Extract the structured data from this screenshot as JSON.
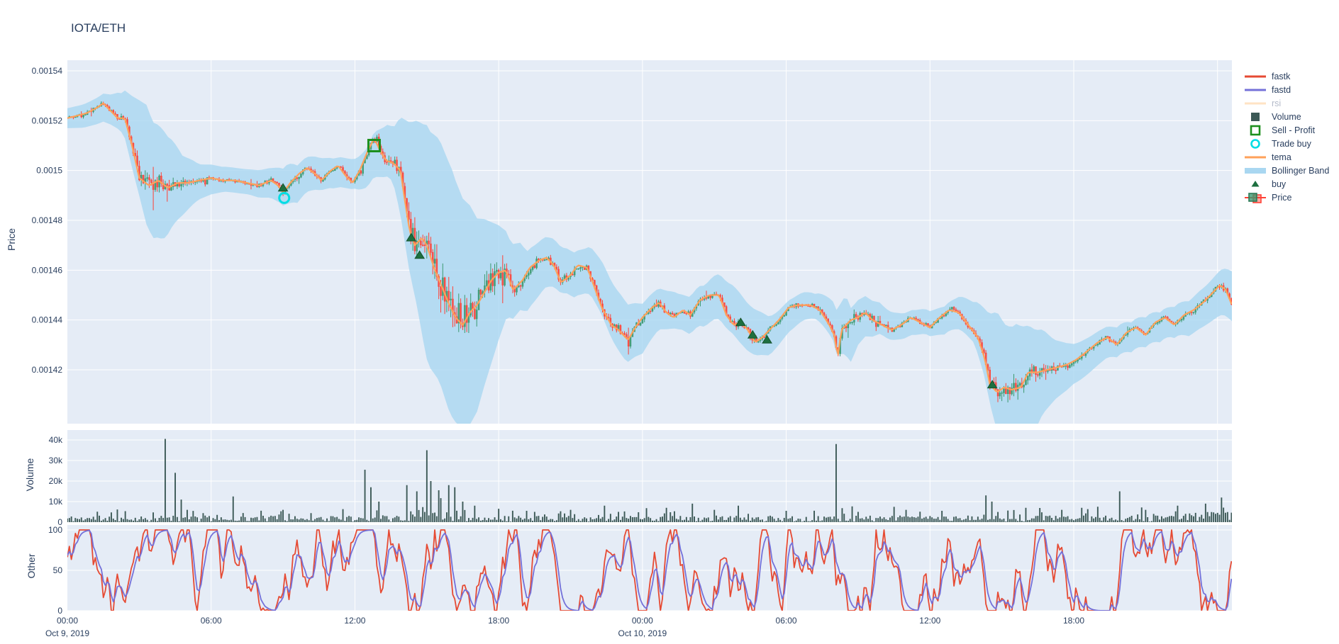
{
  "title": "IOTA/ETH",
  "colors": {
    "paper": "#ffffff",
    "plot_background": "#e5ecf6",
    "grid": "#ffffff",
    "text": "#2a3f5f",
    "candle_up": "#3d9970",
    "candle_up_fill": "rgba(61,153,112,0.55)",
    "candle_down": "#ff4136",
    "candle_down_fill": "rgba(255,65,54,0.5)",
    "tema": "#ffa15a",
    "bollinger_band": "#a9d7f1",
    "volume_bar": "#3c5956",
    "fastk": "#e64a33",
    "fastd": "#7471d9",
    "buy_marker": "#1d6f3f",
    "sell_profit_marker": "#1d8f1d",
    "trade_buy_marker": "#00dde4",
    "rsi_disabled_swatch": "#ffe3c4",
    "disabled_legend_text": "#b3bac9"
  },
  "axes": {
    "price": {
      "title": "Price",
      "tick_labels": [
        "0.00154",
        "0.00152",
        "0.0015",
        "0.00148",
        "0.00146",
        "0.00144",
        "0.00142"
      ],
      "tick_values": [
        0.00154,
        0.00152,
        0.0015,
        0.00148,
        0.00146,
        0.00144,
        0.00142
      ]
    },
    "volume": {
      "title": "Volume",
      "tick_labels": [
        "40k",
        "30k",
        "20k",
        "10k",
        "0"
      ],
      "tick_values": [
        40000,
        30000,
        20000,
        10000,
        0
      ]
    },
    "other": {
      "title": "Other",
      "tick_labels": [
        "100",
        "50",
        "0"
      ],
      "tick_values": [
        100,
        50,
        0
      ]
    },
    "x": {
      "ticks": [
        {
          "h": 0,
          "label": "00:00",
          "date": "Oct 9, 2019"
        },
        {
          "h": 6,
          "label": "06:00",
          "date": ""
        },
        {
          "h": 12,
          "label": "12:00",
          "date": ""
        },
        {
          "h": 18,
          "label": "18:00",
          "date": ""
        },
        {
          "h": 24,
          "label": "00:00",
          "date": "Oct 10, 2019"
        },
        {
          "h": 30,
          "label": "06:00",
          "date": ""
        },
        {
          "h": 36,
          "label": "12:00",
          "date": ""
        },
        {
          "h": 42,
          "label": "18:00",
          "date": ""
        }
      ],
      "gridlines_h": [
        6,
        12,
        18,
        24,
        30,
        36,
        42,
        48
      ]
    }
  },
  "legend": [
    {
      "id": "fastk",
      "label": "fastk",
      "swatch": "line",
      "color_key": "fastk",
      "disabled": false
    },
    {
      "id": "fastd",
      "label": "fastd",
      "swatch": "line",
      "color_key": "fastd",
      "disabled": false
    },
    {
      "id": "rsi",
      "label": "rsi",
      "swatch": "line",
      "color_key": "rsi_disabled_swatch",
      "disabled": true
    },
    {
      "id": "volume",
      "label": "Volume",
      "swatch": "square",
      "color_key": "volume_bar",
      "disabled": false
    },
    {
      "id": "sell-profit",
      "label": "Sell - Profit",
      "swatch": "square-open",
      "color_key": "sell_profit_marker",
      "disabled": false
    },
    {
      "id": "trade-buy",
      "label": "Trade buy",
      "swatch": "circle-open",
      "color_key": "trade_buy_marker",
      "disabled": false
    },
    {
      "id": "tema",
      "label": "tema",
      "swatch": "line",
      "color_key": "tema",
      "disabled": false
    },
    {
      "id": "bollinger-band",
      "label": "Bollinger Band",
      "swatch": "band",
      "color_key": "bollinger_band",
      "disabled": false
    },
    {
      "id": "buy",
      "label": "buy",
      "swatch": "triangle",
      "color_key": "buy_marker",
      "disabled": false
    },
    {
      "id": "price",
      "label": "Price",
      "swatch": "candle",
      "color_key": "candle_up",
      "disabled": false
    }
  ],
  "chart_data": [
    {
      "panel": "price",
      "type": "candlestick",
      "x_unit": "hours since Oct 9, 2019 00:00",
      "x_range": [
        0,
        48.6
      ],
      "y_range": [
        0.001398,
        0.001544
      ],
      "interval_minutes": 5,
      "overlays": [
        "tema",
        "Bollinger Band"
      ],
      "close_path_anchors": [
        [
          0,
          0.001521
        ],
        [
          0.4,
          0.001522
        ],
        [
          0.8,
          0.001523
        ],
        [
          1.2,
          0.001525
        ],
        [
          1.5,
          0.001527
        ],
        [
          1.8,
          0.001524
        ],
        [
          2.1,
          0.001521
        ],
        [
          2.4,
          0.001521
        ],
        [
          2.7,
          0.00151
        ],
        [
          3.0,
          0.001497
        ],
        [
          3.4,
          0.001494
        ],
        [
          3.8,
          0.001496
        ],
        [
          4.2,
          0.001493
        ],
        [
          4.6,
          0.001495
        ],
        [
          5.0,
          0.001495
        ],
        [
          5.5,
          0.001496
        ],
        [
          6.0,
          0.001497
        ],
        [
          6.5,
          0.001496
        ],
        [
          7.0,
          0.001496
        ],
        [
          7.5,
          0.001495
        ],
        [
          8.0,
          0.001494
        ],
        [
          8.5,
          0.001496
        ],
        [
          8.8,
          0.001494
        ],
        [
          9.0,
          0.001491
        ],
        [
          9.3,
          0.001495
        ],
        [
          9.7,
          0.001499
        ],
        [
          10.0,
          0.001501
        ],
        [
          10.3,
          0.001499
        ],
        [
          10.6,
          0.001496
        ],
        [
          11.0,
          0.0015
        ],
        [
          11.3,
          0.001502
        ],
        [
          11.6,
          0.001498
        ],
        [
          11.9,
          0.001495
        ],
        [
          12.2,
          0.0015
        ],
        [
          12.5,
          0.001507
        ],
        [
          12.8,
          0.001513
        ],
        [
          13.0,
          0.001509
        ],
        [
          13.3,
          0.001504
        ],
        [
          13.6,
          0.001503
        ],
        [
          13.9,
          0.0015
        ],
        [
          14.1,
          0.001487
        ],
        [
          14.3,
          0.001475
        ],
        [
          14.5,
          0.00147
        ],
        [
          14.8,
          0.001473
        ],
        [
          15.0,
          0.00147
        ],
        [
          15.3,
          0.001461
        ],
        [
          15.6,
          0.001454
        ],
        [
          15.9,
          0.001447
        ],
        [
          16.2,
          0.001441
        ],
        [
          16.5,
          0.001438
        ],
        [
          16.8,
          0.001443
        ],
        [
          17.1,
          0.001446
        ],
        [
          17.4,
          0.001451
        ],
        [
          17.7,
          0.001456
        ],
        [
          18.0,
          0.001459
        ],
        [
          18.3,
          0.00146
        ],
        [
          18.6,
          0.001452
        ],
        [
          19.0,
          0.001456
        ],
        [
          19.3,
          0.001461
        ],
        [
          19.7,
          0.001464
        ],
        [
          20.0,
          0.001465
        ],
        [
          20.3,
          0.001462
        ],
        [
          20.6,
          0.001455
        ],
        [
          21.0,
          0.001458
        ],
        [
          21.3,
          0.001462
        ],
        [
          21.7,
          0.001461
        ],
        [
          22.0,
          0.001453
        ],
        [
          22.3,
          0.001445
        ],
        [
          22.7,
          0.001438
        ],
        [
          23.0,
          0.001436
        ],
        [
          23.4,
          0.001432
        ],
        [
          23.7,
          0.001437
        ],
        [
          24.0,
          0.001441
        ],
        [
          24.4,
          0.001445
        ],
        [
          24.7,
          0.001447
        ],
        [
          25.0,
          0.001443
        ],
        [
          25.3,
          0.001441
        ],
        [
          25.7,
          0.001444
        ],
        [
          26.0,
          0.001442
        ],
        [
          26.4,
          0.001448
        ],
        [
          26.8,
          0.00145
        ],
        [
          27.2,
          0.00145
        ],
        [
          27.5,
          0.001442
        ],
        [
          27.8,
          0.001438
        ],
        [
          28.1,
          0.001439
        ],
        [
          28.4,
          0.001436
        ],
        [
          28.7,
          0.001431
        ],
        [
          29.0,
          0.001433
        ],
        [
          29.3,
          0.001436
        ],
        [
          29.7,
          0.00144
        ],
        [
          30.1,
          0.001445
        ],
        [
          30.5,
          0.001446
        ],
        [
          31.0,
          0.001446
        ],
        [
          31.4,
          0.001444
        ],
        [
          31.8,
          0.001438
        ],
        [
          32.0,
          0.001434
        ],
        [
          32.15,
          0.001425
        ],
        [
          32.3,
          0.001436
        ],
        [
          32.7,
          0.00144
        ],
        [
          33.0,
          0.001441
        ],
        [
          33.3,
          0.001443
        ],
        [
          33.6,
          0.00144
        ],
        [
          34.0,
          0.001438
        ],
        [
          34.4,
          0.001436
        ],
        [
          34.8,
          0.001438
        ],
        [
          35.2,
          0.001441
        ],
        [
          35.6,
          0.001439
        ],
        [
          36.0,
          0.001437
        ],
        [
          36.4,
          0.001441
        ],
        [
          36.8,
          0.001444
        ],
        [
          37.2,
          0.001443
        ],
        [
          37.6,
          0.001438
        ],
        [
          38.0,
          0.001433
        ],
        [
          38.3,
          0.001424
        ],
        [
          38.5,
          0.001414
        ],
        [
          38.8,
          0.001411
        ],
        [
          39.1,
          0.001413
        ],
        [
          39.4,
          0.001412
        ],
        [
          39.8,
          0.001413
        ],
        [
          40.1,
          0.001419
        ],
        [
          40.5,
          0.001419
        ],
        [
          40.9,
          0.00142
        ],
        [
          41.3,
          0.001421
        ],
        [
          41.7,
          0.001422
        ],
        [
          42.1,
          0.001424
        ],
        [
          42.5,
          0.001427
        ],
        [
          43.0,
          0.001431
        ],
        [
          43.4,
          0.001433
        ],
        [
          43.8,
          0.00143
        ],
        [
          44.2,
          0.001435
        ],
        [
          44.6,
          0.001437
        ],
        [
          45.0,
          0.001434
        ],
        [
          45.4,
          0.001439
        ],
        [
          45.8,
          0.001441
        ],
        [
          46.2,
          0.001438
        ],
        [
          46.6,
          0.001442
        ],
        [
          47.0,
          0.001444
        ],
        [
          47.4,
          0.001447
        ],
        [
          47.8,
          0.001451
        ],
        [
          48.1,
          0.001454
        ],
        [
          48.35,
          0.001452
        ],
        [
          48.6,
          0.001446
        ]
      ],
      "bollinger_halfwidth_anchors_1e6": [
        [
          0,
          4
        ],
        [
          1,
          5
        ],
        [
          1.8,
          6
        ],
        [
          2.3,
          8
        ],
        [
          2.8,
          16
        ],
        [
          3.3,
          24
        ],
        [
          4.0,
          22
        ],
        [
          4.8,
          12
        ],
        [
          5.5,
          7
        ],
        [
          6.5,
          5
        ],
        [
          7.5,
          5
        ],
        [
          8.5,
          6
        ],
        [
          9.2,
          8
        ],
        [
          10,
          7
        ],
        [
          11,
          6
        ],
        [
          12,
          6
        ],
        [
          12.8,
          9
        ],
        [
          13.6,
          11
        ],
        [
          14.2,
          28
        ],
        [
          15,
          47
        ],
        [
          16,
          50
        ],
        [
          16.8,
          44
        ],
        [
          17.6,
          30
        ],
        [
          18.4,
          16
        ],
        [
          19.2,
          12
        ],
        [
          20,
          10
        ],
        [
          20.8,
          9
        ],
        [
          21.6,
          9
        ],
        [
          22.4,
          11
        ],
        [
          23.2,
          12
        ],
        [
          24,
          10
        ],
        [
          24.8,
          8
        ],
        [
          25.6,
          7
        ],
        [
          26.4,
          8
        ],
        [
          27.2,
          9
        ],
        [
          28,
          10
        ],
        [
          28.8,
          9
        ],
        [
          29.6,
          7
        ],
        [
          30.4,
          6
        ],
        [
          31.2,
          5
        ],
        [
          32,
          8
        ],
        [
          32.5,
          12
        ],
        [
          33,
          9
        ],
        [
          34,
          6
        ],
        [
          35,
          5
        ],
        [
          36,
          5
        ],
        [
          37,
          6
        ],
        [
          37.8,
          8
        ],
        [
          38.3,
          14
        ],
        [
          38.8,
          24
        ],
        [
          39.6,
          26
        ],
        [
          40.4,
          20
        ],
        [
          41.2,
          12
        ],
        [
          42,
          8
        ],
        [
          42.8,
          7
        ],
        [
          43.6,
          6
        ],
        [
          44.4,
          6
        ],
        [
          45.2,
          6
        ],
        [
          46,
          6
        ],
        [
          46.8,
          7
        ],
        [
          47.6,
          8
        ],
        [
          48.6,
          10
        ]
      ],
      "markers": {
        "buy": [
          [
            9.0,
            0.001493
          ],
          [
            14.35,
            0.001473
          ],
          [
            14.7,
            0.001466
          ],
          [
            28.1,
            0.001439
          ],
          [
            28.6,
            0.001434
          ],
          [
            29.2,
            0.001432
          ],
          [
            38.6,
            0.001414
          ]
        ],
        "sell_profit": [
          [
            12.8,
            0.00151
          ]
        ],
        "trade_buy": [
          [
            9.05,
            0.001489
          ]
        ]
      },
      "candle_noise_seed": 42
    },
    {
      "panel": "volume",
      "type": "bar",
      "y_range": [
        0,
        45000
      ],
      "base_range": [
        250,
        3200
      ],
      "noise_seed": 11,
      "spikes": [
        [
          4.12,
          40500
        ],
        [
          4.46,
          24000
        ],
        [
          4.72,
          11000
        ],
        [
          5.0,
          6000
        ],
        [
          6.9,
          12500
        ],
        [
          9.0,
          6000
        ],
        [
          12.45,
          25500
        ],
        [
          12.7,
          17000
        ],
        [
          13.0,
          10000
        ],
        [
          14.2,
          18000
        ],
        [
          14.55,
          15000
        ],
        [
          14.96,
          35000
        ],
        [
          15.2,
          20000
        ],
        [
          15.5,
          15500
        ],
        [
          15.9,
          18000
        ],
        [
          16.2,
          17000
        ],
        [
          16.5,
          10000
        ],
        [
          17.0,
          8000
        ],
        [
          18.0,
          6500
        ],
        [
          19.5,
          5000
        ],
        [
          21.0,
          6000
        ],
        [
          22.4,
          8000
        ],
        [
          23.0,
          5000
        ],
        [
          25.0,
          7000
        ],
        [
          26.1,
          9000
        ],
        [
          27.0,
          6000
        ],
        [
          28.0,
          8000
        ],
        [
          30.0,
          5500
        ],
        [
          32.1,
          38000
        ],
        [
          33.0,
          5000
        ],
        [
          35.0,
          6000
        ],
        [
          36.5,
          5500
        ],
        [
          38.3,
          13000
        ],
        [
          38.6,
          10000
        ],
        [
          40.0,
          7000
        ],
        [
          41.5,
          6000
        ],
        [
          43.0,
          7500
        ],
        [
          43.9,
          15000
        ],
        [
          45.0,
          6000
        ],
        [
          46.3,
          8000
        ],
        [
          47.5,
          9000
        ],
        [
          48.2,
          12000
        ]
      ]
    },
    {
      "panel": "other",
      "type": "line",
      "y_range": [
        0,
        100
      ],
      "series": [
        {
          "name": "fastk",
          "color_key": "fastk",
          "description": "stochastic %K, oscillates rapidly, frequently saturating at 0 and 100"
        },
        {
          "name": "fastd",
          "color_key": "fastd",
          "description": "stochastic %D, smoothed version of fastk"
        }
      ],
      "noise_seed": 9
    }
  ]
}
